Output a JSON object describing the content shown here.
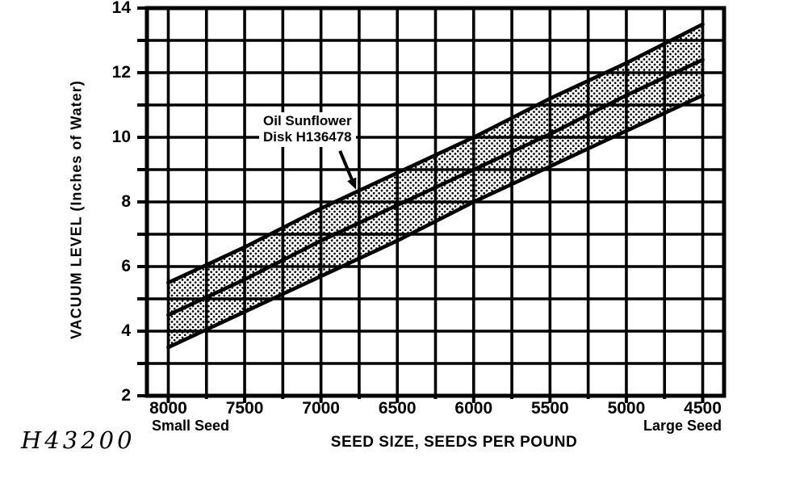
{
  "figure_code": "H43200",
  "y_axis": {
    "title": "VACUUM LEVEL (Inches of Water)",
    "tick_labels": [
      14,
      12,
      10,
      8,
      6,
      4,
      2
    ]
  },
  "x_axis": {
    "title": "SEED SIZE, SEEDS PER POUND",
    "tick_labels": [
      8000,
      7500,
      7000,
      6500,
      6000,
      5500,
      5000,
      4500
    ],
    "left_caption": "Small Seed",
    "right_caption": "Large Seed"
  },
  "annotation": {
    "line1": "Oil Sunflower",
    "line2": "Disk H136478"
  },
  "colors": {
    "ink": "#000000",
    "background": "#ffffff"
  },
  "chart_data": {
    "type": "area",
    "title": "",
    "xlabel": "SEED SIZE, SEEDS PER POUND",
    "ylabel": "VACUUM LEVEL (Inches of Water)",
    "x": [
      8000,
      7500,
      7000,
      6500,
      6000,
      5500,
      5000,
      4500
    ],
    "x_axis_reversed": true,
    "xlim": [
      8140,
      4360
    ],
    "ylim": [
      2,
      14
    ],
    "x_grid_step": 250,
    "y_grid_step": 1,
    "grid": true,
    "legend": "none",
    "series": [
      {
        "name": "upper_limit",
        "values": [
          5.5,
          6.6,
          7.8,
          8.9,
          10.0,
          11.2,
          12.3,
          13.5
        ]
      },
      {
        "name": "recommended",
        "values": [
          4.5,
          5.6,
          6.8,
          7.9,
          9.0,
          10.1,
          11.3,
          12.4
        ]
      },
      {
        "name": "lower_limit",
        "values": [
          3.5,
          4.6,
          5.7,
          6.8,
          8.0,
          9.1,
          10.2,
          11.3
        ]
      }
    ],
    "band": {
      "between": [
        "upper_limit",
        "lower_limit"
      ],
      "fill": "stipple-dots"
    },
    "annotation_arrow": {
      "label": "Oil Sunflower Disk H136478",
      "points_to_seeds": 6770,
      "points_to_vacuum": 8.38
    }
  }
}
